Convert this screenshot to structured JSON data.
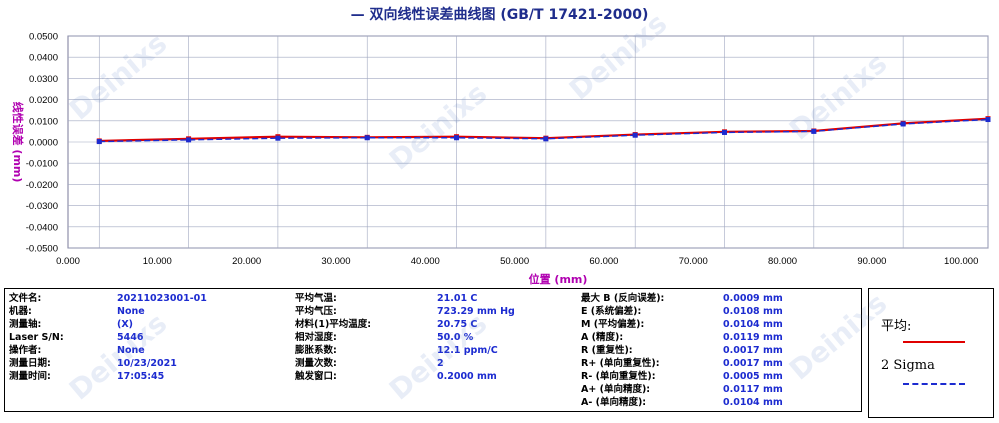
{
  "title": "— 双向线性误差曲线图  (GB/T 17421-2000)",
  "chart_data": {
    "type": "line",
    "xlabel": "位置 (mm)",
    "ylabel": "线性误差 (mm)",
    "xlim": [
      0,
      103
    ],
    "ylim": [
      -0.05,
      0.05
    ],
    "x_ticks": [
      "0.000",
      "10.000",
      "20.000",
      "30.000",
      "40.000",
      "50.000",
      "60.000",
      "70.000",
      "80.000",
      "90.000",
      "100.000"
    ],
    "y_ticks": [
      "0.0500",
      "0.0400",
      "0.0300",
      "0.0200",
      "0.0100",
      "0.0000",
      "-0.0100",
      "-0.0200",
      "-0.0300",
      "-0.0400",
      "-0.0500"
    ],
    "target_positions": [
      3.5,
      13.5,
      23.5,
      33.5,
      43.5,
      53.5,
      63.5,
      73.5,
      83.5,
      93.5,
      103.0
    ],
    "series": [
      {
        "name": "平均:",
        "color": "#e00000",
        "x": [
          3.5,
          13.5,
          23.5,
          33.5,
          43.5,
          53.5,
          63.5,
          73.5,
          83.5,
          93.5,
          103.0
        ],
        "y": [
          0.0005,
          0.0015,
          0.0025,
          0.0022,
          0.0025,
          0.0018,
          0.0035,
          0.0048,
          0.0052,
          0.0088,
          0.011
        ]
      },
      {
        "name": "2 Sigma",
        "color": "#1c2bd0",
        "x": [
          3.5,
          13.5,
          23.5,
          33.5,
          43.5,
          53.5,
          63.5,
          73.5,
          83.5,
          93.5,
          103.0
        ],
        "y": [
          0.0002,
          0.001,
          0.0018,
          0.002,
          0.002,
          0.0015,
          0.0032,
          0.0045,
          0.005,
          0.0085,
          0.0106
        ]
      }
    ],
    "grid": true
  },
  "info": {
    "col1": [
      {
        "label": "文件名:",
        "value": "20211023001-01"
      },
      {
        "label": "机器:",
        "value": "None"
      },
      {
        "label": "测量轴:",
        "value": "(X)"
      },
      {
        "label": "Laser S/N:",
        "value": "5446"
      },
      {
        "label": "操作者:",
        "value": "None"
      },
      {
        "label": "测量日期:",
        "value": "10/23/2021"
      },
      {
        "label": "测量时间:",
        "value": "17:05:45"
      }
    ],
    "col2": [
      {
        "label": "平均气温:",
        "value": "21.01 C"
      },
      {
        "label": "平均气压:",
        "value": "723.29 mm Hg"
      },
      {
        "label": "材料(1)平均温度:",
        "value": "20.75 C"
      },
      {
        "label": "相对湿度:",
        "value": "50.0 %"
      },
      {
        "label": "膨胀系数:",
        "value": "12.1 ppm/C"
      },
      {
        "label": "测量次数:",
        "value": "2"
      },
      {
        "label": "触发窗口:",
        "value": "0.2000 mm"
      }
    ],
    "col3": [
      {
        "label": "最大 B (反向误差):",
        "value": "0.0009 mm"
      },
      {
        "label": "E (系统偏差):",
        "value": "0.0108 mm"
      },
      {
        "label": "M (平均偏差):",
        "value": "0.0104 mm"
      },
      {
        "label": "A (精度):",
        "value": "0.0119 mm"
      },
      {
        "label": "R (重复性):",
        "value": "0.0017 mm"
      },
      {
        "label": "R+ (单向重复性):",
        "value": "0.0017 mm"
      },
      {
        "label": "R- (单向重复性):",
        "value": "0.0005 mm"
      },
      {
        "label": "A+ (单向精度):",
        "value": "0.0117 mm"
      },
      {
        "label": "A- (单向精度):",
        "value": "0.0104 mm"
      }
    ]
  },
  "legend": {
    "mean_label": "平均:",
    "sigma_label": "2 Sigma",
    "mean_color": "#e00000",
    "sigma_color": "#1c2bd0"
  },
  "watermark": "Deinixs"
}
